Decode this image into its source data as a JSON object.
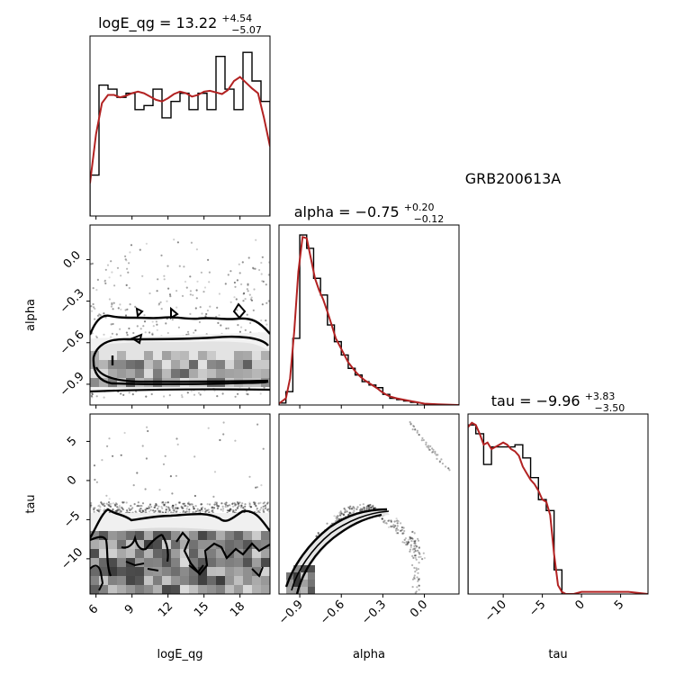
{
  "chart_data": {
    "type": "corner",
    "suptitle": "GRB200613A",
    "parameters": [
      "logE_qg",
      "alpha",
      "tau"
    ],
    "titles": [
      {
        "param": "logE_qg",
        "prefix": "logE_qg = ",
        "median": "13.22",
        "plus": "+4.54",
        "minus": "−5.07"
      },
      {
        "param": "alpha",
        "prefix": "alpha = ",
        "median": "−0.75",
        "plus": "+0.20",
        "minus": "−0.12"
      },
      {
        "param": "tau",
        "prefix": "tau = ",
        "median": "−9.96",
        "plus": "+3.83",
        "minus": "−3.50"
      }
    ],
    "xlabels": [
      "logE_qg",
      "alpha",
      "tau"
    ],
    "ylabels": [
      "alpha",
      "tau"
    ],
    "ranges": {
      "logE_qg": [
        5.5,
        20.5
      ],
      "alpha": [
        -1.05,
        0.25
      ],
      "tau": [
        -14.5,
        8.5
      ]
    },
    "ticks": {
      "logE_qg": {
        "values": [
          6,
          9,
          12,
          15,
          18
        ],
        "labels": [
          "6",
          "9",
          "12",
          "15",
          "18"
        ]
      },
      "alpha": {
        "values": [
          -0.9,
          -0.6,
          -0.3,
          0.0
        ],
        "labels": [
          "−0.9",
          "−0.6",
          "−0.3",
          "0.0"
        ]
      },
      "tau": {
        "values": [
          -10,
          -5,
          0,
          5
        ],
        "labels": [
          "−10",
          "−5",
          "0",
          "5"
        ]
      }
    },
    "histograms": [
      {
        "param": "logE_qg",
        "max": 0.22,
        "edges": [
          5.5,
          6.25,
          7.0,
          7.75,
          8.5,
          9.25,
          10.0,
          10.75,
          11.5,
          12.25,
          13.0,
          13.75,
          14.5,
          15.25,
          16.0,
          16.75,
          17.5,
          18.25,
          19.0,
          19.75,
          20.5
        ],
        "counts": [
          0.05,
          0.16,
          0.155,
          0.145,
          0.15,
          0.13,
          0.135,
          0.155,
          0.12,
          0.14,
          0.15,
          0.13,
          0.15,
          0.13,
          0.195,
          0.155,
          0.13,
          0.2,
          0.165,
          0.14
        ],
        "kde_x": [
          5.5,
          6.0,
          6.5,
          7.0,
          7.5,
          8.0,
          8.5,
          9.0,
          9.5,
          10.0,
          10.5,
          11.0,
          11.5,
          12.0,
          12.5,
          13.0,
          13.5,
          14.0,
          14.5,
          15.0,
          15.5,
          16.0,
          16.5,
          17.0,
          17.5,
          18.0,
          18.5,
          19.0,
          19.5,
          20.0,
          20.5
        ],
        "kde_y": [
          0.04,
          0.1,
          0.138,
          0.148,
          0.148,
          0.145,
          0.147,
          0.15,
          0.152,
          0.15,
          0.146,
          0.142,
          0.14,
          0.144,
          0.149,
          0.152,
          0.15,
          0.146,
          0.148,
          0.152,
          0.153,
          0.151,
          0.149,
          0.154,
          0.165,
          0.17,
          0.163,
          0.156,
          0.15,
          0.12,
          0.085
        ]
      },
      {
        "param": "alpha",
        "max": 0.27,
        "edges": [
          -1.05,
          -1.0,
          -0.95,
          -0.9,
          -0.85,
          -0.8,
          -0.75,
          -0.7,
          -0.65,
          -0.6,
          -0.55,
          -0.5,
          -0.45,
          -0.4,
          -0.35,
          -0.3,
          -0.25,
          -0.2,
          -0.15,
          -0.1,
          -0.05
        ],
        "counts": [
          0.003,
          0.02,
          0.1,
          0.255,
          0.235,
          0.19,
          0.165,
          0.12,
          0.095,
          0.075,
          0.055,
          0.045,
          0.035,
          0.03,
          0.026,
          0.016,
          0.01,
          0.008,
          0.006,
          0.004
        ],
        "kde_x": [
          -1.05,
          -1.0,
          -0.97,
          -0.94,
          -0.91,
          -0.88,
          -0.85,
          -0.82,
          -0.79,
          -0.76,
          -0.73,
          -0.7,
          -0.67,
          -0.64,
          -0.61,
          -0.58,
          -0.55,
          -0.52,
          -0.49,
          -0.46,
          -0.43,
          -0.4,
          -0.37,
          -0.34,
          -0.31,
          -0.28,
          -0.25,
          -0.2,
          -0.15,
          -0.1,
          -0.05,
          0.0,
          0.1,
          0.25
        ],
        "kde_y": [
          0.002,
          0.01,
          0.04,
          0.11,
          0.2,
          0.252,
          0.25,
          0.22,
          0.19,
          0.172,
          0.158,
          0.14,
          0.12,
          0.1,
          0.088,
          0.076,
          0.064,
          0.056,
          0.048,
          0.042,
          0.037,
          0.033,
          0.029,
          0.025,
          0.02,
          0.016,
          0.013,
          0.01,
          0.008,
          0.006,
          0.004,
          0.002,
          0.001,
          0.0
        ]
      },
      {
        "param": "tau",
        "max": 0.082,
        "edges": [
          -14.5,
          -13.5,
          -12.5,
          -11.5,
          -10.5,
          -9.5,
          -8.5,
          -7.5,
          -6.5,
          -5.5,
          -4.5,
          -3.5,
          -2.5
        ],
        "counts": [
          0.077,
          0.073,
          0.059,
          0.067,
          0.067,
          0.067,
          0.068,
          0.062,
          0.053,
          0.043,
          0.038,
          0.011
        ],
        "kde_x": [
          -14.5,
          -14.0,
          -13.5,
          -13.0,
          -12.5,
          -12.0,
          -11.5,
          -11.0,
          -10.5,
          -10.0,
          -9.5,
          -9.0,
          -8.5,
          -8.0,
          -7.5,
          -7.0,
          -6.5,
          -6.0,
          -5.5,
          -5.0,
          -4.5,
          -4.0,
          -3.5,
          -3.0,
          -2.5,
          -2.0,
          -1.0,
          0.0,
          2.0,
          4.0,
          6.0,
          8.5
        ],
        "kde_y": [
          0.076,
          0.078,
          0.077,
          0.073,
          0.068,
          0.069,
          0.066,
          0.067,
          0.068,
          0.069,
          0.068,
          0.066,
          0.065,
          0.063,
          0.058,
          0.055,
          0.052,
          0.05,
          0.047,
          0.043,
          0.042,
          0.036,
          0.018,
          0.004,
          0.001,
          0.0,
          0.0,
          0.001,
          0.001,
          0.001,
          0.001,
          0.0
        ]
      }
    ]
  }
}
